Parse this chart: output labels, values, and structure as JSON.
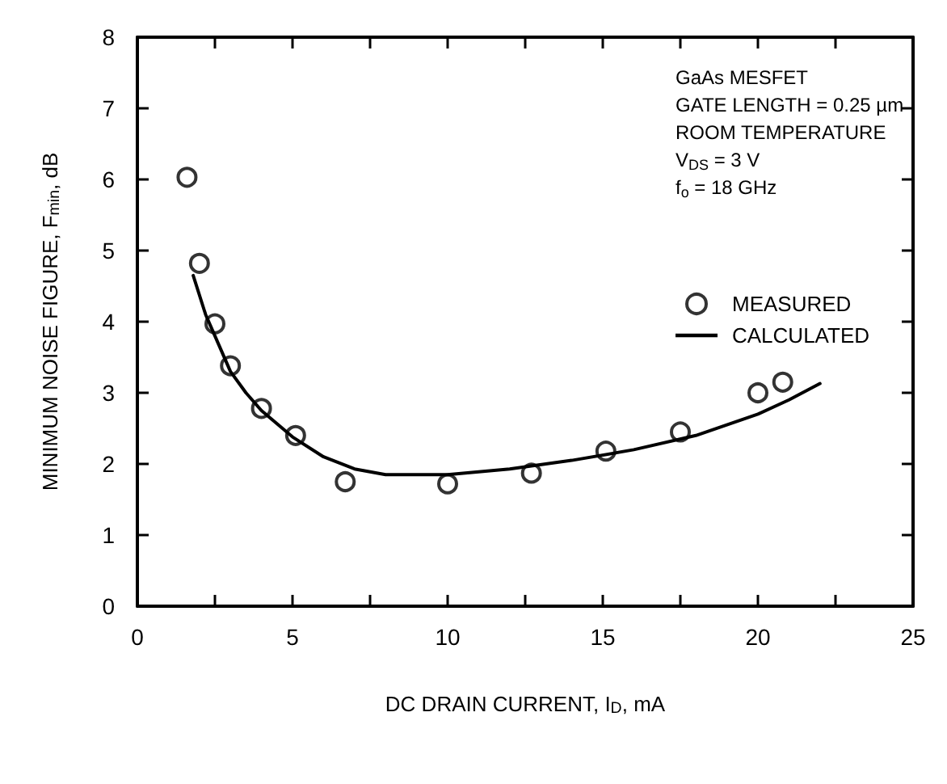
{
  "chart_data": {
    "type": "scatter",
    "xlabel": "DC DRAIN CURRENT, I$_{D}$, mA",
    "ylabel": "MINIMUM NOISE FIGURE, F$_{min}$, dB",
    "xlim": [
      0,
      25
    ],
    "xticks": [
      0,
      {
        "value": 2.5,
        "label": null
      },
      5,
      {
        "value": 7.5,
        "label": null
      },
      10,
      {
        "value": 12.5,
        "label": null
      },
      15,
      {
        "value": 17.5,
        "label": null
      },
      20,
      {
        "value": 22.5,
        "label": null
      },
      25
    ],
    "ylim": [
      0,
      8
    ],
    "yticks": [
      0,
      1,
      2,
      3,
      4,
      5,
      6,
      7,
      8
    ],
    "grid": false,
    "legend": "top right",
    "annotations": [
      "GaAs MESFET",
      "GATE LENGTH = 0.25 µm",
      "ROOM TEMPERATURE",
      "V$_{DS}$ = 3 V",
      "f$_{o}$ = 18 GHz"
    ],
    "series": [
      {
        "name": "MEASURED",
        "type": "scatter",
        "marker": "circle",
        "color": "#000000",
        "x": [
          1.6,
          2.0,
          2.5,
          3.0,
          4.0,
          5.1,
          6.7,
          10.0,
          12.7,
          15.1,
          17.5,
          20.0,
          20.8
        ],
        "values": [
          6.03,
          4.82,
          3.97,
          3.38,
          2.78,
          2.4,
          1.75,
          1.72,
          1.87,
          2.18,
          2.45,
          3.0,
          3.15
        ]
      },
      {
        "name": "CALCULATED",
        "type": "line",
        "marker": "none",
        "line_style": "solid",
        "color": "#000000",
        "x": [
          1.8,
          2.2,
          2.5,
          3,
          3.5,
          4,
          5,
          6,
          7,
          8,
          10,
          12,
          14,
          16,
          18,
          20,
          21,
          22
        ],
        "values": [
          4.65,
          4.1,
          3.8,
          3.3,
          3.0,
          2.75,
          2.38,
          2.1,
          1.93,
          1.85,
          1.85,
          1.93,
          2.05,
          2.2,
          2.4,
          2.7,
          2.9,
          3.13
        ]
      }
    ]
  }
}
